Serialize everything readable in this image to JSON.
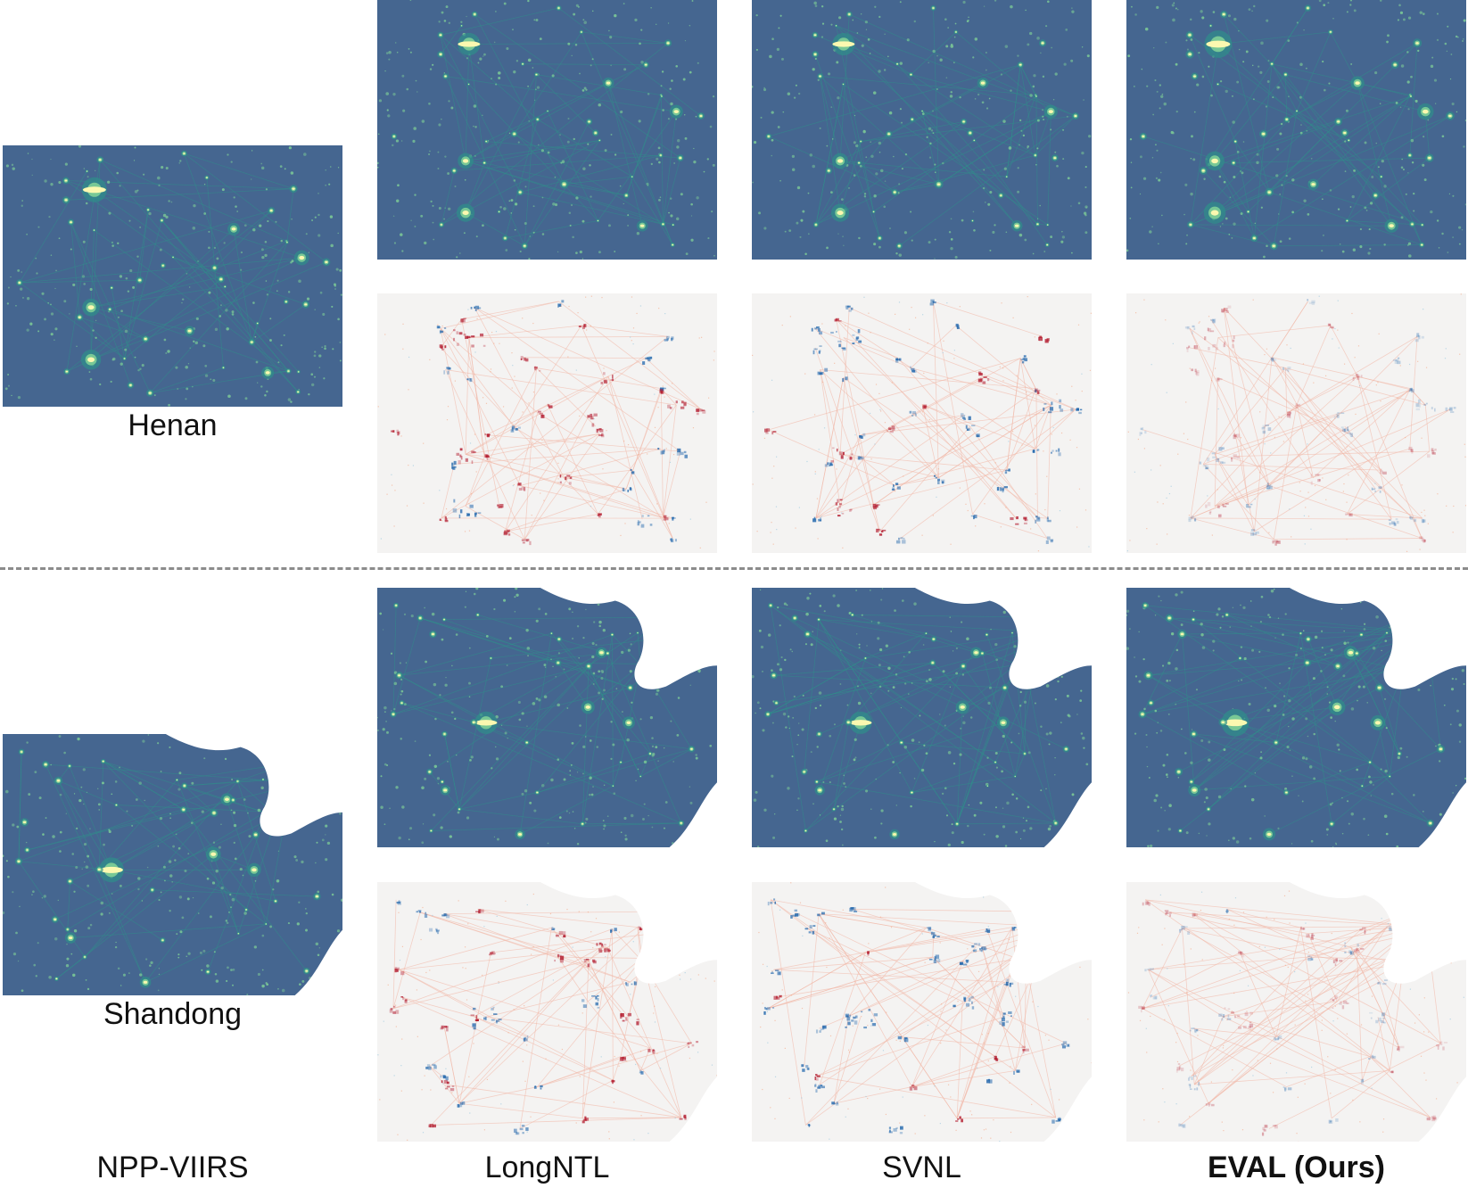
{
  "regions": {
    "henan": "Henan",
    "shandong": "Shandong"
  },
  "columns": {
    "reference": "NPP-VIIRS",
    "method1": "LongNTL",
    "method2": "SVNL",
    "method3": "EVAL (Ours)"
  },
  "colors": {
    "light_map_background": "#456690",
    "light_low": "#2f8f8a",
    "light_mid": "#7fcf97",
    "light_high": "#fbf8b0",
    "error_background": "#f4f3f2",
    "error_positive": "#b2182b",
    "error_negative": "#2166ac"
  }
}
